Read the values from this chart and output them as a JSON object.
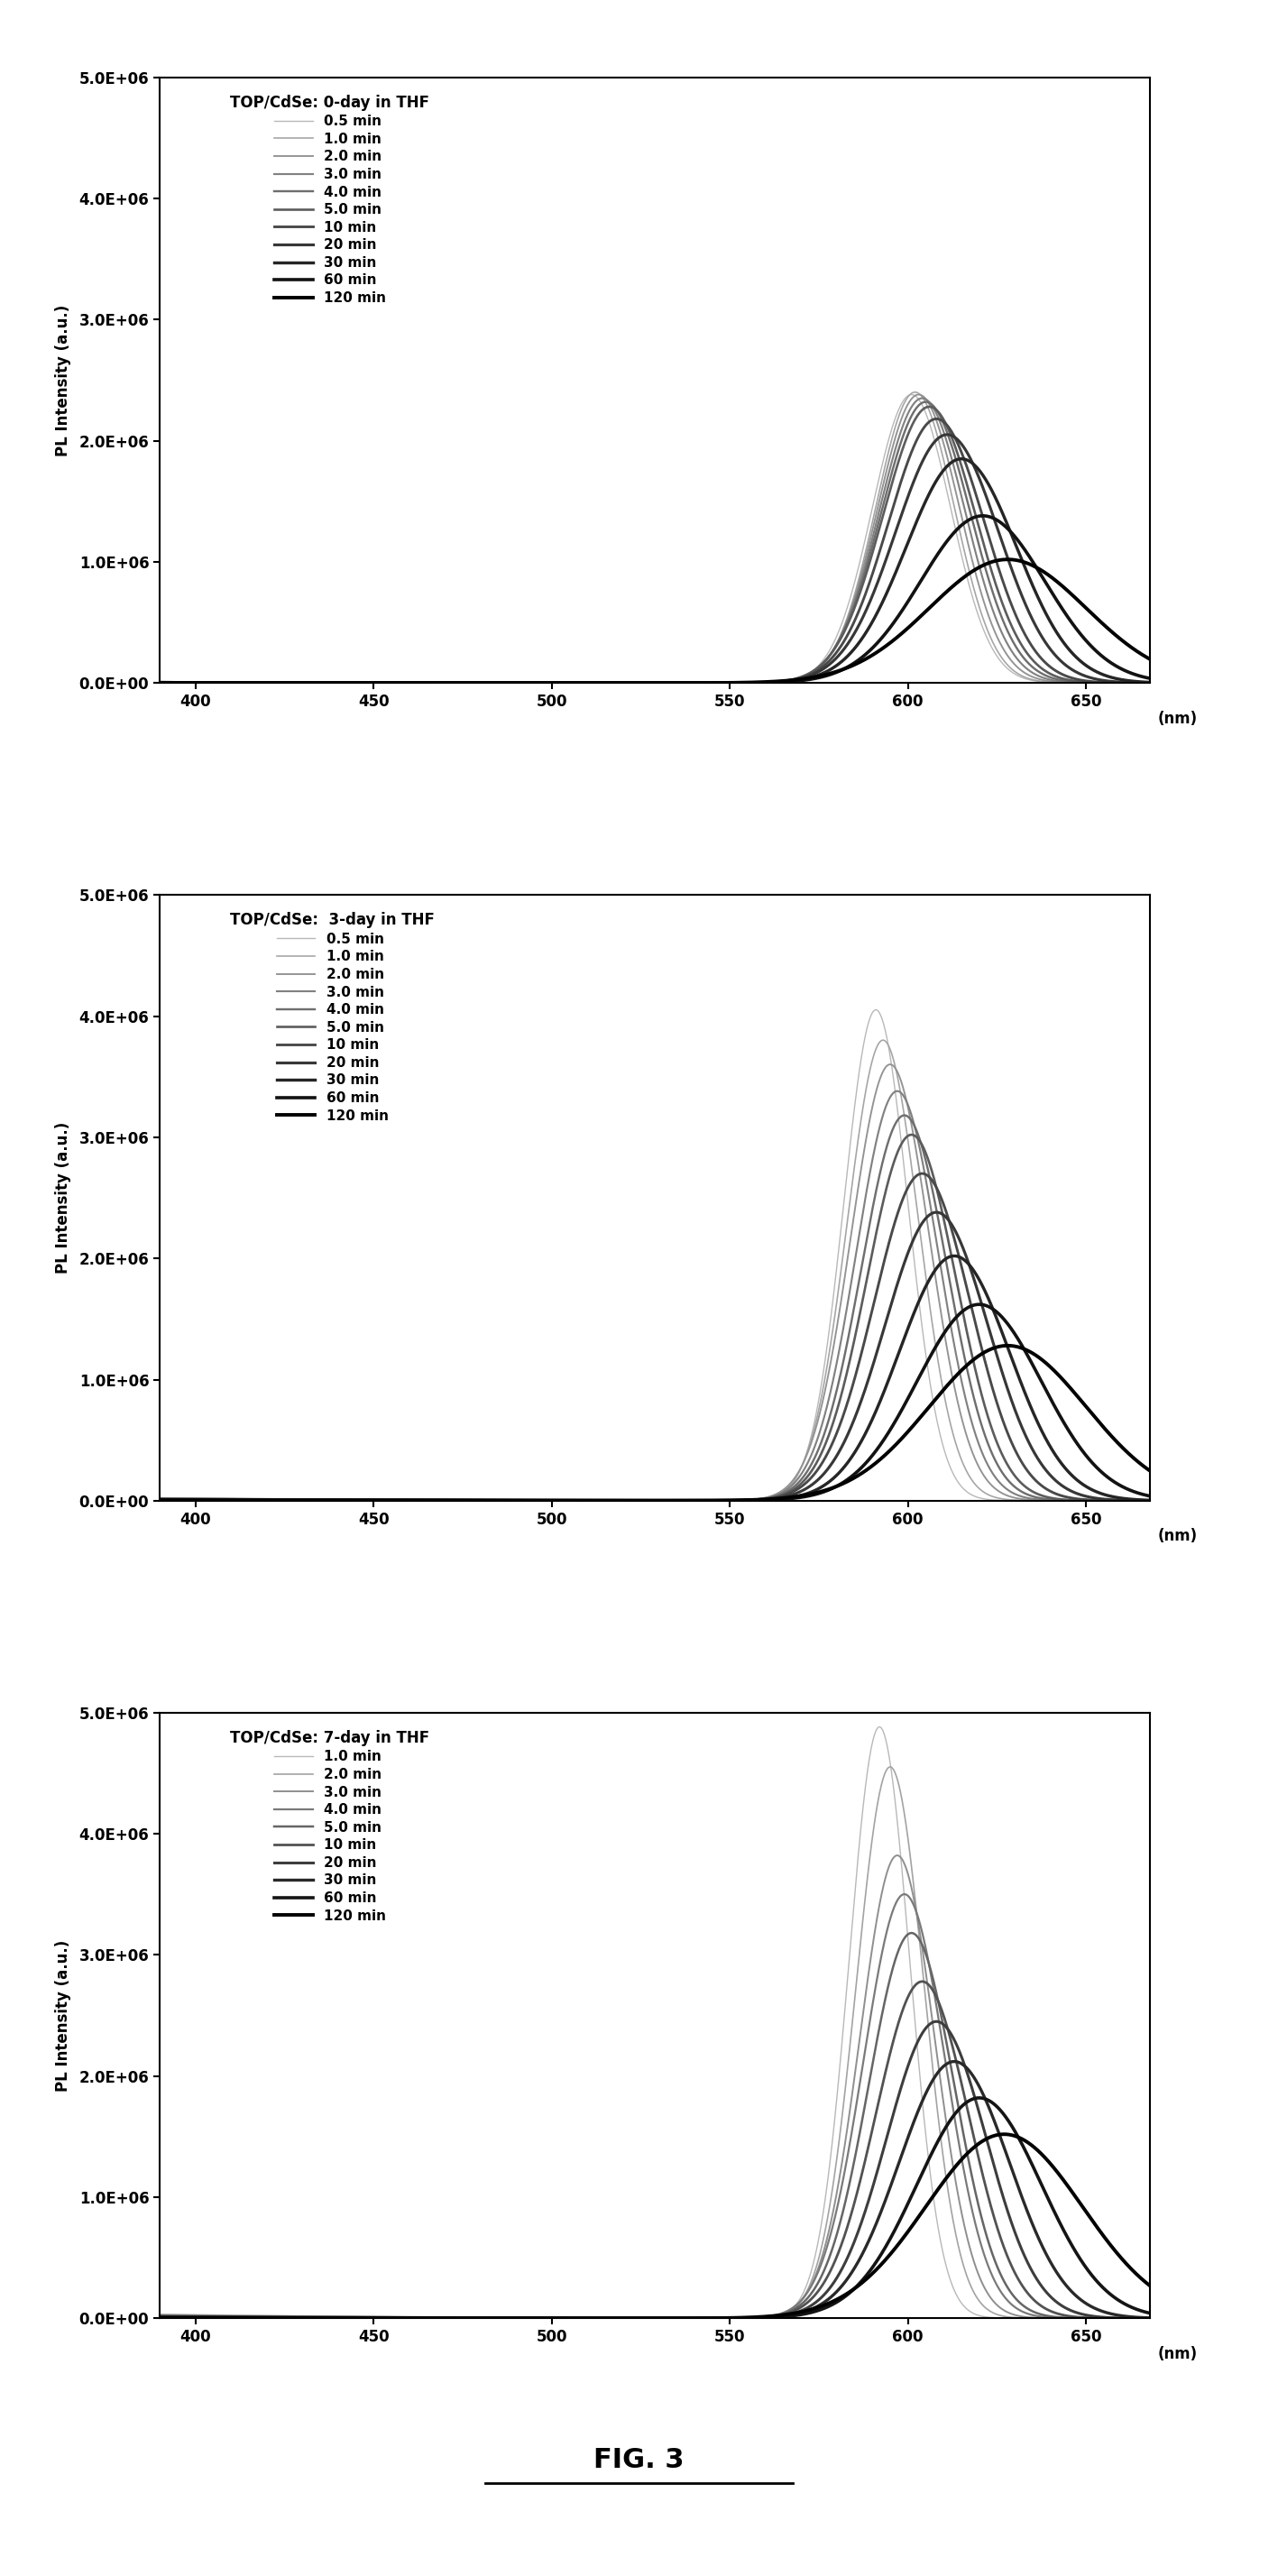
{
  "panels": [
    {
      "title": "TOP/CdSe: 0-day in THF",
      "times": [
        "0.5 min",
        "1.0 min",
        "2.0 min",
        "3.0 min",
        "4.0 min",
        "5.0 min",
        "10 min",
        "20 min",
        "30 min",
        "60 min",
        "120 min"
      ],
      "peaks": [
        601,
        602,
        603,
        604,
        605,
        606,
        608,
        611,
        615,
        621,
        628
      ],
      "amplitudes": [
        2380000.0,
        2400000.0,
        2380000.0,
        2350000.0,
        2320000.0,
        2280000.0,
        2180000.0,
        2050000.0,
        1850000.0,
        1380000.0,
        1020000.0
      ],
      "widths": [
        11,
        11,
        11.5,
        12,
        12.5,
        13,
        13.5,
        14.5,
        15.5,
        17.5,
        22
      ],
      "baselines": [
        12000.0,
        11000.0,
        10000.0,
        9000.0,
        8000.0,
        7000.0,
        6000.0,
        5000.0,
        4000.0,
        3000.0,
        2000.0
      ]
    },
    {
      "title": "TOP/CdSe:  3-day in THF",
      "times": [
        "0.5 min",
        "1.0 min",
        "2.0 min",
        "3.0 min",
        "4.0 min",
        "5.0 min",
        "10 min",
        "20 min",
        "30 min",
        "60 min",
        "120 min"
      ],
      "peaks": [
        591,
        593,
        595,
        597,
        599,
        601,
        604,
        608,
        613,
        620,
        628
      ],
      "amplitudes": [
        4050000.0,
        3800000.0,
        3600000.0,
        3380000.0,
        3180000.0,
        3020000.0,
        2700000.0,
        2380000.0,
        2020000.0,
        1620000.0,
        1280000.0
      ],
      "widths": [
        9,
        10,
        11,
        11.5,
        12,
        12.5,
        13.5,
        14.5,
        15.5,
        17.5,
        22
      ],
      "baselines": [
        25000.0,
        22000.0,
        20000.0,
        18000.0,
        16000.0,
        14000.0,
        12000.0,
        10000.0,
        8000.0,
        6000.0,
        4000.0
      ]
    },
    {
      "title": "TOP/CdSe: 7-day in THF",
      "times": [
        "1.0 min",
        "2.0 min",
        "3.0 min",
        "4.0 min",
        "5.0 min",
        "10 min",
        "20 min",
        "30 min",
        "60 min",
        "120 min"
      ],
      "peaks": [
        592,
        595,
        597,
        599,
        601,
        604,
        608,
        613,
        620,
        627
      ],
      "amplitudes": [
        4880000.0,
        4550000.0,
        3820000.0,
        3500000.0,
        3180000.0,
        2780000.0,
        2450000.0,
        2120000.0,
        1820000.0,
        1520000.0
      ],
      "widths": [
        8.5,
        9.5,
        10.5,
        11.5,
        12,
        13,
        14,
        15.5,
        17.5,
        22
      ],
      "baselines": [
        35000.0,
        30000.0,
        25000.0,
        22000.0,
        20000.0,
        16000.0,
        13000.0,
        10000.0,
        7000.0,
        5000.0
      ]
    }
  ],
  "xlim": [
    390,
    668
  ],
  "ylim": [
    0,
    5000000.0
  ],
  "ylabel": "PL Intensity (a.u.)",
  "xticks": [
    400,
    450,
    500,
    550,
    600,
    650
  ],
  "yticks": [
    0.0,
    1000000.0,
    2000000.0,
    3000000.0,
    4000000.0,
    5000000.0
  ],
  "ytick_labels": [
    "0.0E+00",
    "1.0E+06",
    "2.0E+06",
    "3.0E+06",
    "4.0E+06",
    "5.0E+06"
  ],
  "figure_label": "FIG. 3",
  "bg_color": "#ffffff"
}
